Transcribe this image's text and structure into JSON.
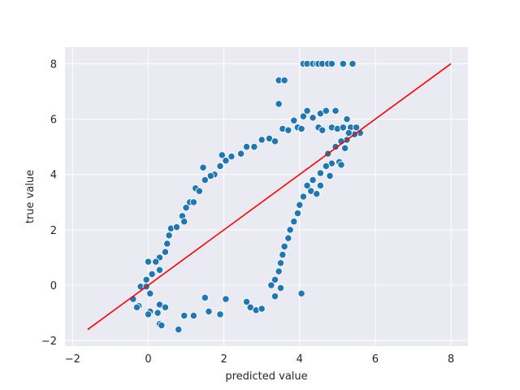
{
  "chart_data": {
    "type": "scatter",
    "title": "",
    "xlabel": "predicted value",
    "ylabel": "true value",
    "xlim": [
      -2.2,
      8.45
    ],
    "ylim": [
      -2.2,
      8.6
    ],
    "xticks": [
      -2,
      0,
      2,
      4,
      6,
      8
    ],
    "yticks": [
      -2,
      0,
      2,
      4,
      6,
      8
    ],
    "xtick_labels": [
      "−2",
      "0",
      "2",
      "4",
      "6",
      "8"
    ],
    "ytick_labels": [
      "−2",
      "0",
      "2",
      "4",
      "6",
      "8"
    ],
    "grid": true,
    "background": "#eaeaf2",
    "point_color": "#1f77b4",
    "point_edge_color": "#ffffff",
    "line_color": "#ff0000",
    "reference_line": {
      "x": [
        -1.6,
        8.0
      ],
      "y": [
        -1.6,
        8.0
      ]
    },
    "points": [
      [
        4.1,
        8.0
      ],
      [
        4.2,
        8.0
      ],
      [
        4.35,
        8.0
      ],
      [
        4.45,
        8.0
      ],
      [
        4.5,
        8.0
      ],
      [
        4.6,
        8.0
      ],
      [
        4.75,
        8.0
      ],
      [
        4.85,
        8.0
      ],
      [
        5.15,
        8.0
      ],
      [
        5.4,
        8.0
      ],
      [
        3.45,
        7.4
      ],
      [
        3.6,
        7.4
      ],
      [
        3.45,
        6.55
      ],
      [
        4.2,
        6.3
      ],
      [
        4.55,
        6.2
      ],
      [
        4.7,
        6.3
      ],
      [
        4.95,
        6.3
      ],
      [
        5.25,
        6.0
      ],
      [
        4.1,
        6.1
      ],
      [
        3.85,
        5.95
      ],
      [
        4.35,
        6.05
      ],
      [
        3.95,
        5.7
      ],
      [
        4.05,
        5.65
      ],
      [
        4.5,
        5.7
      ],
      [
        4.6,
        5.6
      ],
      [
        4.85,
        5.7
      ],
      [
        5.0,
        5.65
      ],
      [
        5.15,
        5.7
      ],
      [
        5.35,
        5.7
      ],
      [
        5.5,
        5.7
      ],
      [
        5.6,
        5.5
      ],
      [
        5.45,
        5.45
      ],
      [
        5.3,
        5.5
      ],
      [
        3.55,
        5.65
      ],
      [
        3.7,
        5.6
      ],
      [
        3.2,
        5.3
      ],
      [
        3.35,
        5.2
      ],
      [
        3.0,
        5.25
      ],
      [
        2.8,
        5.0
      ],
      [
        2.6,
        5.0
      ],
      [
        2.45,
        4.75
      ],
      [
        2.2,
        4.65
      ],
      [
        1.95,
        4.7
      ],
      [
        2.05,
        4.5
      ],
      [
        1.9,
        4.3
      ],
      [
        1.75,
        4.0
      ],
      [
        1.65,
        3.95
      ],
      [
        1.45,
        4.25
      ],
      [
        1.5,
        3.8
      ],
      [
        1.25,
        3.5
      ],
      [
        1.35,
        3.4
      ],
      [
        1.1,
        3.0
      ],
      [
        1.2,
        3.0
      ],
      [
        1.0,
        2.8
      ],
      [
        0.9,
        2.5
      ],
      [
        0.95,
        2.3
      ],
      [
        0.6,
        2.05
      ],
      [
        0.75,
        2.1
      ],
      [
        0.55,
        1.8
      ],
      [
        0.5,
        1.5
      ],
      [
        0.45,
        1.2
      ],
      [
        0.3,
        1.0
      ],
      [
        0.2,
        0.85
      ],
      [
        0.0,
        0.85
      ],
      [
        0.3,
        0.55
      ],
      [
        0.1,
        0.4
      ],
      [
        -0.05,
        0.2
      ],
      [
        -0.2,
        -0.05
      ],
      [
        -0.05,
        -0.05
      ],
      [
        0.05,
        -0.3
      ],
      [
        -0.4,
        -0.5
      ],
      [
        -0.25,
        -0.75
      ],
      [
        -0.3,
        -0.8
      ],
      [
        0.05,
        -0.95
      ],
      [
        0.25,
        -1.0
      ],
      [
        0.0,
        -1.05
      ],
      [
        0.3,
        -0.7
      ],
      [
        0.45,
        -0.8
      ],
      [
        0.3,
        -1.4
      ],
      [
        0.35,
        -1.45
      ],
      [
        0.8,
        -1.6
      ],
      [
        0.95,
        -1.1
      ],
      [
        1.2,
        -1.1
      ],
      [
        1.6,
        -0.95
      ],
      [
        1.9,
        -1.05
      ],
      [
        1.5,
        -0.45
      ],
      [
        2.05,
        -0.5
      ],
      [
        2.6,
        -0.6
      ],
      [
        2.7,
        -0.8
      ],
      [
        2.85,
        -0.9
      ],
      [
        3.0,
        -0.85
      ],
      [
        3.35,
        -0.4
      ],
      [
        3.5,
        -0.1
      ],
      [
        4.05,
        -0.3
      ],
      [
        5.25,
        5.25
      ],
      [
        5.1,
        5.2
      ],
      [
        5.2,
        4.95
      ],
      [
        4.95,
        5.0
      ],
      [
        4.75,
        4.75
      ],
      [
        5.05,
        4.45
      ],
      [
        5.1,
        4.35
      ],
      [
        4.85,
        4.4
      ],
      [
        4.7,
        4.3
      ],
      [
        4.55,
        4.05
      ],
      [
        4.35,
        3.8
      ],
      [
        4.2,
        3.6
      ],
      [
        4.3,
        3.4
      ],
      [
        4.1,
        3.2
      ],
      [
        4.0,
        2.9
      ],
      [
        3.95,
        2.6
      ],
      [
        3.85,
        2.3
      ],
      [
        3.75,
        2.0
      ],
      [
        3.7,
        1.7
      ],
      [
        3.6,
        1.4
      ],
      [
        3.55,
        1.1
      ],
      [
        3.5,
        0.8
      ],
      [
        3.45,
        0.5
      ],
      [
        3.35,
        0.2
      ],
      [
        3.25,
        0.0
      ],
      [
        4.8,
        3.95
      ],
      [
        4.45,
        3.3
      ],
      [
        4.55,
        3.6
      ]
    ]
  }
}
